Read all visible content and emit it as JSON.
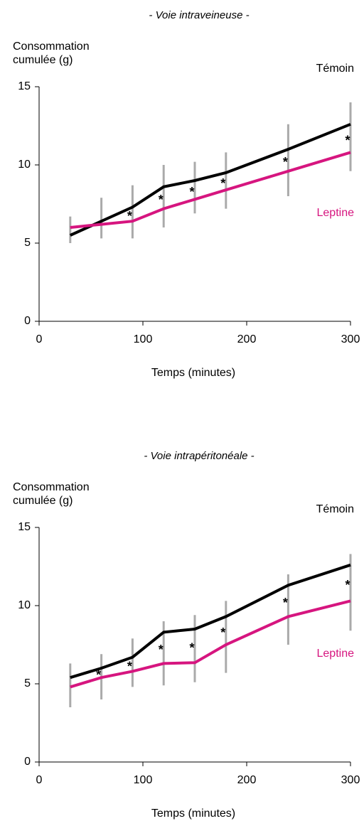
{
  "chart_data": [
    {
      "type": "line",
      "title": "- Voie intraveineuse -",
      "ylabel": [
        "Consommation",
        "cumulée (g)"
      ],
      "xlabel": "Temps (minutes)",
      "x": [
        30,
        60,
        90,
        120,
        150,
        180,
        240,
        300
      ],
      "series": [
        {
          "name": "Témoin",
          "color": "#000000",
          "values": [
            5.5,
            6.4,
            7.3,
            8.6,
            9.0,
            9.5,
            11.0,
            12.6
          ]
        },
        {
          "name": "Leptine",
          "color": "#d6157f",
          "values": [
            6.0,
            6.2,
            6.4,
            7.2,
            7.8,
            8.4,
            9.6,
            10.8
          ]
        }
      ],
      "error_bars": {
        "color": "#aaaaaa",
        "low": [
          5.0,
          5.3,
          5.3,
          6.0,
          6.9,
          7.2,
          8.0,
          9.6
        ],
        "high": [
          6.7,
          7.9,
          8.7,
          10.0,
          10.2,
          10.8,
          12.6,
          14.0
        ]
      },
      "significance_label": "*",
      "significance_x": [
        90,
        120,
        150,
        180,
        240,
        300
      ],
      "xlim": [
        0,
        300
      ],
      "ylim": [
        0,
        15
      ],
      "xticks": [
        0,
        100,
        200,
        300
      ],
      "yticks": [
        0,
        5,
        10,
        15
      ]
    },
    {
      "type": "line",
      "title": "- Voie intrapéritonéale -",
      "ylabel": [
        "Consommation",
        "cumulée (g)"
      ],
      "xlabel": "Temps (minutes)",
      "x": [
        30,
        60,
        90,
        120,
        150,
        180,
        240,
        300
      ],
      "series": [
        {
          "name": "Témoin",
          "color": "#000000",
          "values": [
            5.4,
            6.0,
            6.7,
            8.3,
            8.5,
            9.3,
            11.3,
            12.6
          ]
        },
        {
          "name": "Leptine",
          "color": "#d6157f",
          "values": [
            4.8,
            5.4,
            5.8,
            6.3,
            6.35,
            7.5,
            9.3,
            10.3
          ]
        }
      ],
      "error_bars": {
        "color": "#aaaaaa",
        "low": [
          3.5,
          4.0,
          4.8,
          4.9,
          5.1,
          5.7,
          7.5,
          8.4
        ],
        "high": [
          6.3,
          6.9,
          7.9,
          9.0,
          9.4,
          10.3,
          12.0,
          13.3
        ]
      },
      "significance_label": "*",
      "significance_x": [
        60,
        90,
        120,
        150,
        180,
        240,
        300
      ],
      "xlim": [
        0,
        300
      ],
      "ylim": [
        0,
        15
      ],
      "xticks": [
        0,
        100,
        200,
        300
      ],
      "yticks": [
        0,
        5,
        10,
        15
      ]
    }
  ]
}
